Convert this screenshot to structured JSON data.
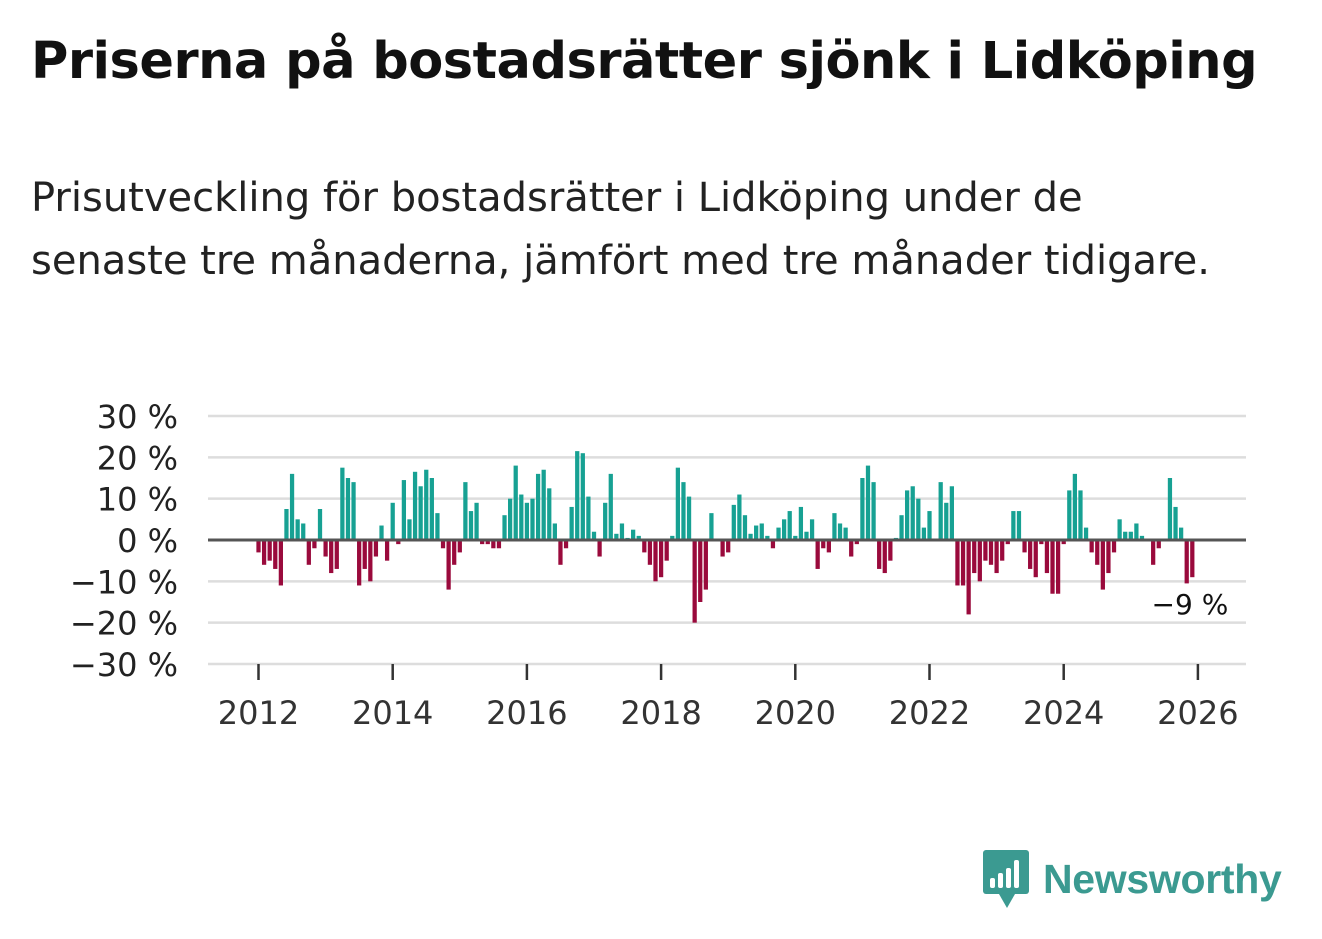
{
  "title": "Priserna på bostadsrätter sjönk i Lidköping",
  "subtitle": "Prisutveckling för bostadsrätter i Lidköping under de senaste tre månaderna, jämfört med tre månader tidigare.",
  "colors": {
    "positive": "#17a193",
    "negative": "#9a0a3c",
    "brand": "#3b9a91",
    "grid": "#dddddd",
    "zero": "#555555"
  },
  "brand": {
    "name": "Newsworthy",
    "icon": "bar-chart-speech-bubble-icon"
  },
  "chart_data": {
    "type": "bar",
    "title": "Priserna på bostadsrätter sjönk i Lidköping",
    "xlabel": "",
    "ylabel": "",
    "ylim": [
      -30,
      30
    ],
    "yticks": [
      30,
      20,
      10,
      0,
      -10,
      -20,
      -30
    ],
    "ytick_labels": [
      "30 %",
      "20 %",
      "10 %",
      "0 %",
      "−10 %",
      "−20 %",
      "−30 %"
    ],
    "xticks": [
      "2012",
      "2014",
      "2016",
      "2018",
      "2020",
      "2022",
      "2024",
      "2026"
    ],
    "start": "2012-01",
    "frequency": "monthly",
    "last_value_label": "−9 %",
    "values": [
      -3,
      -6,
      -5,
      -7,
      -11,
      7.5,
      16,
      5,
      4,
      -6,
      -2,
      7.5,
      -4,
      -8,
      -7,
      17.5,
      15,
      14,
      -11,
      -7,
      -10,
      -4,
      3.5,
      -5,
      9,
      -1,
      14.5,
      5,
      16.5,
      13,
      17,
      15,
      6.5,
      -2,
      -12,
      -6,
      -3,
      14,
      7,
      9,
      -1,
      -1,
      -2,
      -2,
      6,
      10,
      18,
      11,
      9,
      10,
      16,
      17,
      12.5,
      4,
      -6,
      -2,
      8,
      21.5,
      21,
      10.5,
      2,
      -4,
      9,
      16,
      1.5,
      4,
      0.5,
      2.5,
      1,
      -3,
      -6,
      -10,
      -9,
      -5,
      1,
      17.5,
      14,
      10.5,
      -20,
      -15,
      -12,
      6.5,
      0,
      -4,
      -3,
      8.5,
      11,
      6,
      1.5,
      3.5,
      4,
      1,
      -2,
      3,
      5,
      7,
      1,
      8,
      2,
      5,
      -7,
      -2,
      -3,
      6.5,
      4,
      3,
      -4,
      -1,
      15,
      18,
      14,
      -7,
      -8,
      -5,
      0.5,
      6,
      12,
      13,
      10,
      3,
      7,
      0,
      14,
      9,
      13,
      -11,
      -11,
      -18,
      -8,
      -10,
      -5,
      -6,
      -8,
      -5,
      -1,
      7,
      7,
      -3,
      -7,
      -9,
      -1,
      -8,
      -13,
      -13,
      -1,
      12,
      16,
      12,
      3,
      -3,
      -6,
      -12,
      -8,
      -3,
      5,
      2,
      2,
      4,
      1,
      0,
      -6,
      -2,
      0,
      15,
      8,
      3,
      -10.5,
      -9
    ]
  }
}
